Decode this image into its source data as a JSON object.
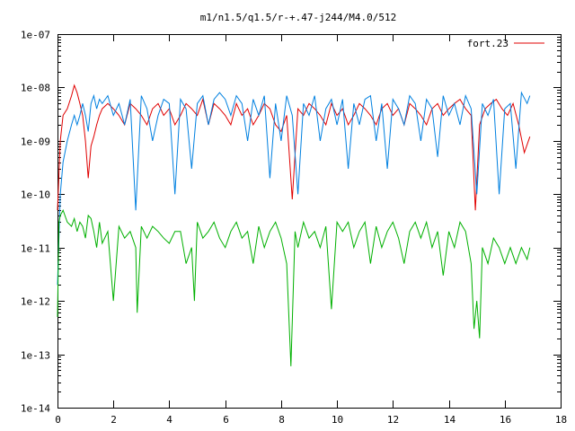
{
  "chart_data": {
    "type": "line",
    "title": "m1/n1.5/q1.5/r-+.47-j244/M4.0/512",
    "xlabel": "",
    "ylabel": "",
    "xlim": [
      0,
      18
    ],
    "ylim": [
      1e-14,
      1e-07
    ],
    "yscale": "log",
    "x_ticks": [
      "0",
      "2",
      "4",
      "6",
      "8",
      "10",
      "12",
      "14",
      "16",
      "18"
    ],
    "y_ticks": [
      "1e-14",
      "1e-13",
      "1e-12",
      "1e-11",
      "1e-10",
      "1e-09",
      "1e-08",
      "1e-07"
    ],
    "grid": false,
    "legend_position": "top-right",
    "series": [
      {
        "name": "fort.23",
        "color": "#e00000",
        "x": [
          0.0,
          0.1,
          0.2,
          0.35,
          0.5,
          0.6,
          0.7,
          0.8,
          0.9,
          1.0,
          1.1,
          1.2,
          1.3,
          1.4,
          1.5,
          1.6,
          1.8,
          2.0,
          2.2,
          2.4,
          2.6,
          2.8,
          3.0,
          3.2,
          3.4,
          3.6,
          3.8,
          4.0,
          4.2,
          4.4,
          4.6,
          4.8,
          5.0,
          5.2,
          5.4,
          5.6,
          5.8,
          6.0,
          6.2,
          6.4,
          6.6,
          6.8,
          7.0,
          7.2,
          7.4,
          7.6,
          7.8,
          8.0,
          8.2,
          8.4,
          8.6,
          8.8,
          9.0,
          9.2,
          9.4,
          9.6,
          9.8,
          10.0,
          10.2,
          10.4,
          10.6,
          10.8,
          11.0,
          11.2,
          11.4,
          11.6,
          11.8,
          12.0,
          12.2,
          12.4,
          12.6,
          12.8,
          13.0,
          13.2,
          13.4,
          13.6,
          13.8,
          14.0,
          14.2,
          14.4,
          14.6,
          14.8,
          14.95,
          15.1,
          15.3,
          15.5,
          15.7,
          15.9,
          16.1,
          16.3,
          16.5,
          16.7,
          16.9
        ],
        "values": [
          5e-11,
          1e-09,
          3e-09,
          4e-09,
          7e-09,
          1.1e-08,
          8e-09,
          5e-09,
          3e-09,
          1e-09,
          2e-10,
          8e-10,
          1.2e-09,
          2e-09,
          3e-09,
          4e-09,
          5e-09,
          4e-09,
          3e-09,
          2e-09,
          5e-09,
          4e-09,
          3e-09,
          2e-09,
          4e-09,
          5e-09,
          3e-09,
          4e-09,
          2e-09,
          3e-09,
          5e-09,
          4e-09,
          3e-09,
          6e-09,
          2e-09,
          5e-09,
          4e-09,
          3e-09,
          2e-09,
          5e-09,
          3e-09,
          4e-09,
          2e-09,
          3e-09,
          5e-09,
          4e-09,
          2e-09,
          1.5e-09,
          3e-09,
          8e-11,
          4e-09,
          3e-09,
          5e-09,
          4e-09,
          3e-09,
          2e-09,
          5e-09,
          3e-09,
          4e-09,
          2e-09,
          3e-09,
          5e-09,
          4e-09,
          3e-09,
          2e-09,
          4e-09,
          5e-09,
          3e-09,
          4e-09,
          2e-09,
          5e-09,
          4e-09,
          3e-09,
          2e-09,
          4e-09,
          5e-09,
          3e-09,
          4e-09,
          5e-09,
          6e-09,
          4e-09,
          3e-09,
          5e-11,
          2e-09,
          4e-09,
          5e-09,
          6e-09,
          4e-09,
          3e-09,
          5e-09,
          2e-09,
          6e-10,
          1.2e-09
        ]
      },
      {
        "name": "",
        "color": "#0080e0",
        "x": [
          0.0,
          0.1,
          0.2,
          0.35,
          0.5,
          0.6,
          0.7,
          0.8,
          0.9,
          1.0,
          1.1,
          1.2,
          1.3,
          1.4,
          1.5,
          1.6,
          1.8,
          2.0,
          2.2,
          2.4,
          2.6,
          2.8,
          3.0,
          3.2,
          3.4,
          3.6,
          3.8,
          4.0,
          4.2,
          4.4,
          4.6,
          4.8,
          5.0,
          5.2,
          5.4,
          5.6,
          5.8,
          6.0,
          6.2,
          6.4,
          6.6,
          6.8,
          7.0,
          7.2,
          7.4,
          7.6,
          7.8,
          8.0,
          8.2,
          8.4,
          8.6,
          8.8,
          9.0,
          9.2,
          9.4,
          9.6,
          9.8,
          10.0,
          10.2,
          10.4,
          10.6,
          10.8,
          11.0,
          11.2,
          11.4,
          11.6,
          11.8,
          12.0,
          12.2,
          12.4,
          12.6,
          12.8,
          13.0,
          13.2,
          13.4,
          13.6,
          13.8,
          14.0,
          14.2,
          14.4,
          14.6,
          14.8,
          15.0,
          15.2,
          15.4,
          15.6,
          15.8,
          16.0,
          16.2,
          16.4,
          16.6,
          16.8,
          16.9
        ],
        "values": [
          2e-12,
          1e-10,
          4e-10,
          1e-09,
          2e-09,
          3e-09,
          2e-09,
          3e-09,
          5e-09,
          3e-09,
          1.5e-09,
          5e-09,
          7e-09,
          4e-09,
          6e-09,
          5e-09,
          7e-09,
          3e-09,
          5e-09,
          2e-09,
          6e-09,
          5e-11,
          7e-09,
          4e-09,
          1e-09,
          3e-09,
          6e-09,
          5e-09,
          1e-10,
          6e-09,
          4e-09,
          3e-10,
          5e-09,
          7e-09,
          2e-09,
          6e-09,
          8e-09,
          6e-09,
          3e-09,
          7e-09,
          5e-09,
          1e-09,
          6e-09,
          3e-09,
          7e-09,
          2e-10,
          5e-09,
          1e-09,
          7e-09,
          3e-09,
          1e-10,
          5e-09,
          3e-09,
          7e-09,
          1e-09,
          4e-09,
          6e-09,
          2e-09,
          6e-09,
          3e-10,
          5e-09,
          2e-09,
          6e-09,
          7e-09,
          1e-09,
          5e-09,
          3e-10,
          6e-09,
          4e-09,
          2e-09,
          7e-09,
          5e-09,
          1e-09,
          6e-09,
          4e-09,
          5e-10,
          7e-09,
          3e-09,
          5e-09,
          2e-09,
          7e-09,
          4e-09,
          1e-10,
          5e-09,
          3e-09,
          6e-09,
          1e-10,
          4e-09,
          5e-09,
          3e-10,
          8e-09,
          5e-09,
          7e-09
        ]
      },
      {
        "name": "",
        "color": "#00b000",
        "x": [
          0.0,
          0.05,
          0.1,
          0.2,
          0.35,
          0.5,
          0.6,
          0.7,
          0.8,
          0.9,
          1.0,
          1.1,
          1.2,
          1.3,
          1.4,
          1.5,
          1.6,
          1.8,
          2.0,
          2.2,
          2.4,
          2.6,
          2.8,
          2.85,
          3.0,
          3.2,
          3.4,
          3.6,
          3.8,
          4.0,
          4.2,
          4.4,
          4.6,
          4.8,
          4.9,
          5.0,
          5.2,
          5.4,
          5.6,
          5.8,
          6.0,
          6.2,
          6.4,
          6.6,
          6.8,
          7.0,
          7.2,
          7.4,
          7.6,
          7.8,
          8.0,
          8.2,
          8.35,
          8.5,
          8.6,
          8.8,
          9.0,
          9.2,
          9.4,
          9.6,
          9.8,
          10.0,
          10.2,
          10.4,
          10.6,
          10.8,
          11.0,
          11.2,
          11.4,
          11.6,
          11.8,
          12.0,
          12.2,
          12.4,
          12.6,
          12.8,
          13.0,
          13.2,
          13.4,
          13.6,
          13.8,
          14.0,
          14.2,
          14.4,
          14.6,
          14.8,
          14.9,
          15.0,
          15.1,
          15.2,
          15.4,
          15.6,
          15.8,
          16.0,
          16.2,
          16.4,
          16.6,
          16.8,
          16.9
        ],
        "values": [
          5e-13,
          3e-11,
          4e-11,
          5e-11,
          3e-11,
          2.5e-11,
          3.5e-11,
          2e-11,
          3e-11,
          2.5e-11,
          1.5e-11,
          4e-11,
          3.5e-11,
          2e-11,
          1e-11,
          3e-11,
          1.2e-11,
          2e-11,
          1e-12,
          2.5e-11,
          1.5e-11,
          2e-11,
          1e-11,
          6e-13,
          2.5e-11,
          1.5e-11,
          2.5e-11,
          2e-11,
          1.5e-11,
          1.2e-11,
          2e-11,
          2e-11,
          5e-12,
          1e-11,
          1e-12,
          3e-11,
          1.5e-11,
          2e-11,
          3e-11,
          1.5e-11,
          1e-11,
          2e-11,
          3e-11,
          1.5e-11,
          2e-11,
          5e-12,
          2.5e-11,
          1e-11,
          2e-11,
          3e-11,
          1.5e-11,
          5e-12,
          6e-14,
          2e-11,
          1e-11,
          3e-11,
          1.5e-11,
          2e-11,
          1e-11,
          2.5e-11,
          7e-13,
          3e-11,
          2e-11,
          3e-11,
          1e-11,
          2e-11,
          3e-11,
          5e-12,
          2.5e-11,
          1e-11,
          2e-11,
          3e-11,
          1.5e-11,
          5e-12,
          2e-11,
          3e-11,
          1.5e-11,
          3e-11,
          1e-11,
          2e-11,
          3e-12,
          2e-11,
          1e-11,
          3e-11,
          2e-11,
          5e-12,
          3e-13,
          1e-12,
          2e-13,
          1e-11,
          5e-12,
          1.5e-11,
          1e-11,
          5e-12,
          1e-11,
          5e-12,
          1e-11,
          6e-12,
          1e-11
        ]
      }
    ]
  }
}
